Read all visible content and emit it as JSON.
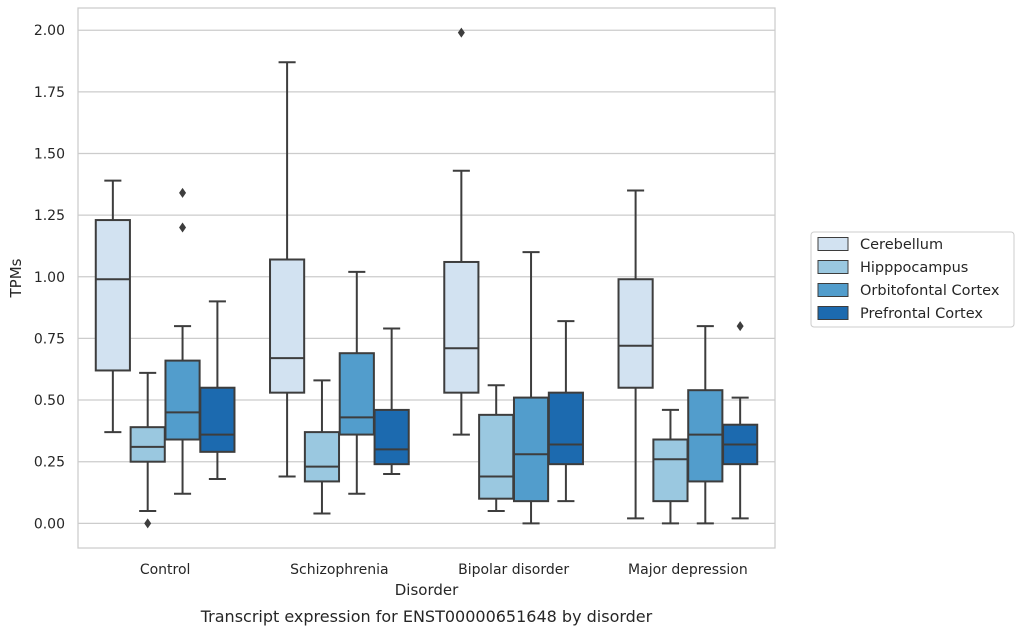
{
  "chart_data": {
    "type": "box",
    "caption": "Transcript expression for ENST00000651648 by disorder",
    "xlabel": "Disorder",
    "ylabel": "TPMs",
    "ylim": [
      -0.1,
      2.09
    ],
    "yticks": [
      "0.00",
      "0.25",
      "0.50",
      "0.75",
      "1.00",
      "1.25",
      "1.50",
      "1.75",
      "2.00"
    ],
    "grid": "horizontal",
    "legend_position": "right",
    "categories": [
      "Control",
      "Schizophrenia",
      "Bipolar disorder",
      "Major depression"
    ],
    "series": [
      {
        "name": "Cerebellum",
        "color": "#d2e2f1",
        "boxes": [
          {
            "whisker_low": 0.37,
            "q1": 0.62,
            "median": 0.99,
            "q3": 1.23,
            "whisker_high": 1.39,
            "outliers": []
          },
          {
            "whisker_low": 0.19,
            "q1": 0.53,
            "median": 0.67,
            "q3": 1.07,
            "whisker_high": 1.87,
            "outliers": []
          },
          {
            "whisker_low": 0.36,
            "q1": 0.53,
            "median": 0.71,
            "q3": 1.06,
            "whisker_high": 1.43,
            "outliers": [
              1.99
            ]
          },
          {
            "whisker_low": 0.02,
            "q1": 0.55,
            "median": 0.72,
            "q3": 0.99,
            "whisker_high": 1.35,
            "outliers": []
          }
        ]
      },
      {
        "name": "Hipppocampus",
        "color": "#9ac8e0",
        "boxes": [
          {
            "whisker_low": 0.05,
            "q1": 0.25,
            "median": 0.31,
            "q3": 0.39,
            "whisker_high": 0.61,
            "outliers": [
              0.0
            ]
          },
          {
            "whisker_low": 0.04,
            "q1": 0.17,
            "median": 0.23,
            "q3": 0.37,
            "whisker_high": 0.58,
            "outliers": []
          },
          {
            "whisker_low": 0.05,
            "q1": 0.1,
            "median": 0.19,
            "q3": 0.44,
            "whisker_high": 0.56,
            "outliers": []
          },
          {
            "whisker_low": 0.0,
            "q1": 0.09,
            "median": 0.26,
            "q3": 0.34,
            "whisker_high": 0.46,
            "outliers": []
          }
        ]
      },
      {
        "name": "Orbitofontal Cortex",
        "color": "#529dcc",
        "boxes": [
          {
            "whisker_low": 0.12,
            "q1": 0.34,
            "median": 0.45,
            "q3": 0.66,
            "whisker_high": 0.8,
            "outliers": [
              1.2,
              1.34
            ]
          },
          {
            "whisker_low": 0.12,
            "q1": 0.36,
            "median": 0.43,
            "q3": 0.69,
            "whisker_high": 1.02,
            "outliers": []
          },
          {
            "whisker_low": 0.0,
            "q1": 0.09,
            "median": 0.28,
            "q3": 0.51,
            "whisker_high": 1.1,
            "outliers": []
          },
          {
            "whisker_low": 0.0,
            "q1": 0.17,
            "median": 0.36,
            "q3": 0.54,
            "whisker_high": 0.8,
            "outliers": []
          }
        ]
      },
      {
        "name": "Prefrontal Cortex",
        "color": "#1c6aaf",
        "boxes": [
          {
            "whisker_low": 0.18,
            "q1": 0.29,
            "median": 0.36,
            "q3": 0.55,
            "whisker_high": 0.9,
            "outliers": []
          },
          {
            "whisker_low": 0.2,
            "q1": 0.24,
            "median": 0.3,
            "q3": 0.46,
            "whisker_high": 0.79,
            "outliers": []
          },
          {
            "whisker_low": 0.09,
            "q1": 0.24,
            "median": 0.32,
            "q3": 0.53,
            "whisker_high": 0.82,
            "outliers": []
          },
          {
            "whisker_low": 0.02,
            "q1": 0.24,
            "median": 0.32,
            "q3": 0.4,
            "whisker_high": 0.51,
            "outliers": [
              0.8
            ]
          }
        ]
      }
    ]
  }
}
